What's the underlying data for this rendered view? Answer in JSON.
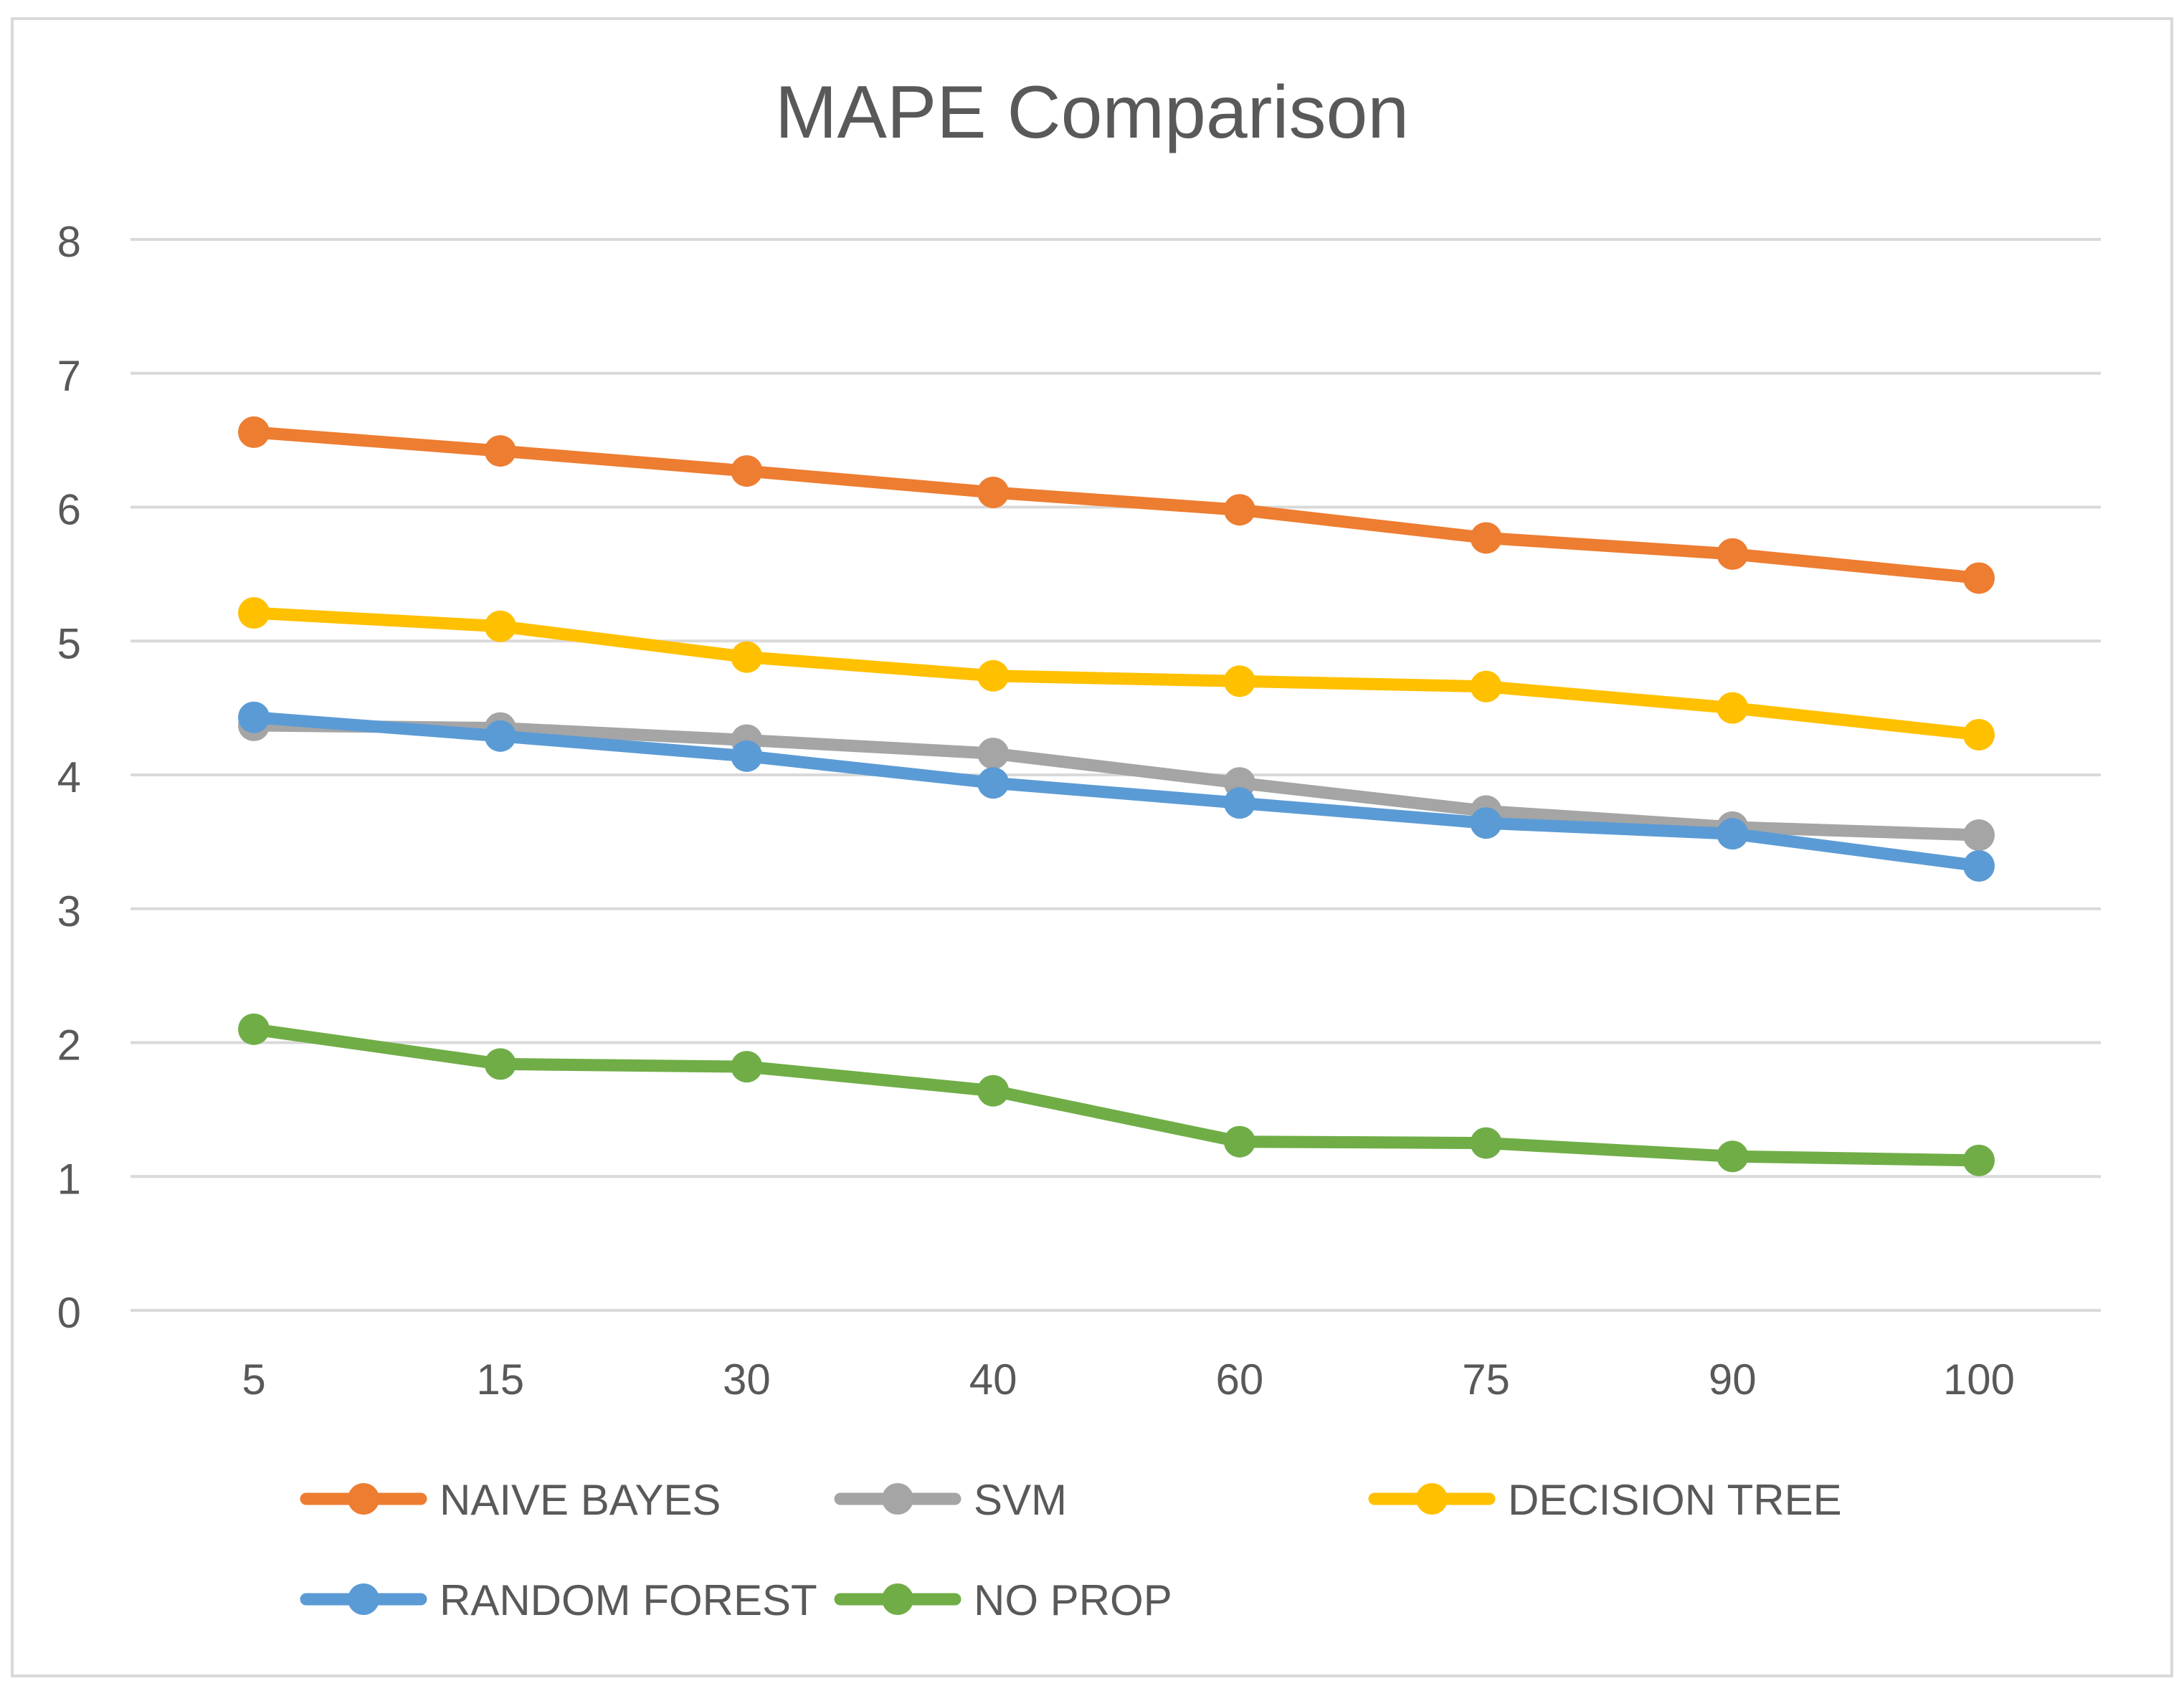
{
  "chart_data": {
    "type": "line",
    "title": "MAPE Comparison",
    "xlabel": "",
    "ylabel": "",
    "categories": [
      "5",
      "15",
      "30",
      "40",
      "60",
      "75",
      "90",
      "100"
    ],
    "ylim": [
      0,
      8
    ],
    "yticks": [
      0,
      1,
      2,
      3,
      4,
      5,
      6,
      7,
      8
    ],
    "grid": true,
    "legend_position": "bottom",
    "series": [
      {
        "name": "NAIVE BAYES",
        "color": "#ED7D31",
        "values": [
          6.56,
          6.42,
          6.27,
          6.11,
          5.98,
          5.77,
          5.65,
          5.47
        ]
      },
      {
        "name": "SVM",
        "color": "#A5A5A5",
        "values": [
          4.37,
          4.35,
          4.26,
          4.16,
          3.94,
          3.73,
          3.61,
          3.55
        ]
      },
      {
        "name": "DECISION TREE",
        "color": "#FFC000",
        "values": [
          5.21,
          5.11,
          4.88,
          4.74,
          4.7,
          4.66,
          4.5,
          4.3
        ]
      },
      {
        "name": "RANDOM FOREST",
        "color": "#5B9BD5",
        "values": [
          4.43,
          4.29,
          4.14,
          3.94,
          3.79,
          3.64,
          3.56,
          3.32
        ]
      },
      {
        "name": "NO PROP",
        "color": "#70AD47",
        "values": [
          2.1,
          1.84,
          1.82,
          1.64,
          1.26,
          1.25,
          1.15,
          1.12
        ]
      }
    ]
  }
}
